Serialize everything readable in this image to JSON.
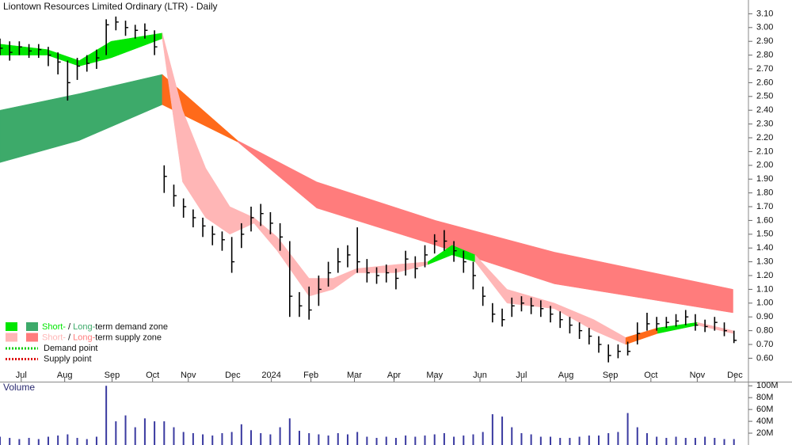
{
  "chart_data": [
    {
      "type": "ohlc",
      "title": "Liontown Resources Limited Ordinary (LTR) - Daily",
      "x": [
        0,
        1,
        2,
        3,
        4,
        5,
        6,
        7,
        8,
        9,
        10,
        11,
        12,
        13,
        14,
        15,
        16,
        17,
        18,
        19,
        20,
        21,
        22,
        23,
        24,
        25,
        26,
        27,
        28,
        29,
        30,
        31,
        32,
        33,
        34,
        35,
        36,
        37,
        38,
        39,
        40,
        41,
        42,
        43,
        44,
        45,
        46,
        47,
        48,
        49,
        50,
        51,
        52,
        53,
        54,
        55,
        56,
        57,
        58,
        59,
        60,
        61,
        62,
        63,
        64,
        65,
        66,
        67,
        68,
        69,
        70,
        71,
        72,
        73,
        74,
        75,
        76
      ],
      "close": [
        2.85,
        2.82,
        2.86,
        2.83,
        2.84,
        2.8,
        2.75,
        2.6,
        2.72,
        2.74,
        2.78,
        3.02,
        3.04,
        3.0,
        2.98,
        2.98,
        2.86,
        1.92,
        1.78,
        1.7,
        1.62,
        1.56,
        1.5,
        1.46,
        1.3,
        1.5,
        1.62,
        1.65,
        1.58,
        1.48,
        1.05,
        0.98,
        0.95,
        1.1,
        1.22,
        1.3,
        1.35,
        1.3,
        1.22,
        1.2,
        1.22,
        1.18,
        1.32,
        1.25,
        1.35,
        1.45,
        1.45,
        1.38,
        1.3,
        1.2,
        1.05,
        0.92,
        0.88,
        0.98,
        1.0,
        0.98,
        0.96,
        0.92,
        0.88,
        0.84,
        0.8,
        0.76,
        0.7,
        0.62,
        0.65,
        0.65,
        0.78,
        0.85,
        0.85,
        0.86,
        0.87,
        0.9,
        0.84,
        0.83,
        0.86,
        0.8,
        0.73
      ],
      "high": [
        2.92,
        2.9,
        2.9,
        2.88,
        2.88,
        2.86,
        2.82,
        2.76,
        2.78,
        2.8,
        2.84,
        3.06,
        3.08,
        3.05,
        3.02,
        3.03,
        2.98,
        2.0,
        1.86,
        1.76,
        1.68,
        1.62,
        1.56,
        1.52,
        1.48,
        1.58,
        1.7,
        1.72,
        1.66,
        1.58,
        1.45,
        1.08,
        1.12,
        1.2,
        1.3,
        1.4,
        1.42,
        1.55,
        1.32,
        1.26,
        1.28,
        1.25,
        1.38,
        1.34,
        1.42,
        1.5,
        1.53,
        1.45,
        1.38,
        1.3,
        1.12,
        1.0,
        0.96,
        1.04,
        1.05,
        1.04,
        1.02,
        0.98,
        0.94,
        0.9,
        0.86,
        0.82,
        0.76,
        0.7,
        0.7,
        0.72,
        0.86,
        0.93,
        0.9,
        0.9,
        0.92,
        0.95,
        0.92,
        0.88,
        0.9,
        0.86,
        0.8
      ],
      "low": [
        2.8,
        2.76,
        2.8,
        2.78,
        2.78,
        2.72,
        2.66,
        2.47,
        2.62,
        2.68,
        2.7,
        2.8,
        2.98,
        2.94,
        2.92,
        2.92,
        2.8,
        1.8,
        1.7,
        1.62,
        1.55,
        1.48,
        1.42,
        1.38,
        1.22,
        1.4,
        1.52,
        1.56,
        1.5,
        1.38,
        0.9,
        0.9,
        0.88,
        0.98,
        1.12,
        1.22,
        1.26,
        1.22,
        1.15,
        1.14,
        1.15,
        1.1,
        1.2,
        1.18,
        1.26,
        1.36,
        1.38,
        1.3,
        1.22,
        1.1,
        0.98,
        0.86,
        0.83,
        0.9,
        0.94,
        0.92,
        0.9,
        0.86,
        0.82,
        0.78,
        0.74,
        0.7,
        0.64,
        0.57,
        0.6,
        0.62,
        0.7,
        0.8,
        0.8,
        0.82,
        0.83,
        0.84,
        0.8,
        0.79,
        0.8,
        0.76,
        0.71
      ],
      "color": "#000000",
      "bands": [
        {
          "color": "#3daa6a",
          "x": [
            0,
            8.2,
            16.8
          ],
          "upper": [
            2.4,
            2.52,
            2.66
          ],
          "lower": [
            2.02,
            2.18,
            2.44
          ]
        },
        {
          "color": "#ff6a1a",
          "x": [
            16.8,
            24.6
          ],
          "upper": [
            2.66,
            2.18
          ],
          "lower": [
            2.44,
            2.17
          ]
        },
        {
          "color": "#ff7c7c",
          "x": [
            24.6,
            32.8,
            45.1,
            57.4,
            75.9
          ],
          "upper": [
            2.18,
            1.88,
            1.6,
            1.37,
            1.1
          ],
          "lower": [
            2.17,
            1.69,
            1.42,
            1.14,
            0.93
          ]
        },
        {
          "color": "#00e600",
          "x": [
            0,
            4.9,
            8.2,
            11.5,
            16.8
          ],
          "upper": [
            2.88,
            2.84,
            2.76,
            2.9,
            2.96
          ],
          "lower": [
            2.8,
            2.8,
            2.72,
            2.78,
            2.92
          ]
        },
        {
          "color": "#ffb6b6",
          "x": [
            16.8,
            18.9,
            21.3,
            23.8,
            26.3,
            28.7,
            32.0,
            34.5,
            36.9,
            41.0,
            44.3
          ],
          "upper": [
            2.96,
            2.4,
            1.98,
            1.7,
            1.62,
            1.48,
            1.18,
            1.18,
            1.25,
            1.28,
            1.3
          ],
          "lower": [
            2.92,
            1.88,
            1.62,
            1.5,
            1.58,
            1.38,
            1.05,
            1.1,
            1.22,
            1.22,
            1.28
          ]
        },
        {
          "color": "#00e600",
          "x": [
            44.3,
            46.8,
            49.2
          ],
          "upper": [
            1.3,
            1.42,
            1.35
          ],
          "lower": [
            1.28,
            1.35,
            1.3
          ]
        },
        {
          "color": "#ffb6b6",
          "x": [
            49.2,
            52.5,
            57.4,
            61.5,
            64.8
          ],
          "upper": [
            1.35,
            1.1,
            1.0,
            0.88,
            0.75
          ],
          "lower": [
            1.3,
            1.0,
            0.96,
            0.8,
            0.7
          ]
        },
        {
          "color": "#ff6a1a",
          "x": [
            64.8,
            68.1
          ],
          "upper": [
            0.75,
            0.82
          ],
          "lower": [
            0.7,
            0.78
          ]
        },
        {
          "color": "#00e600",
          "x": [
            68.1,
            72.2
          ],
          "upper": [
            0.82,
            0.86
          ],
          "lower": [
            0.78,
            0.84
          ]
        },
        {
          "color": "#ffb6b6",
          "x": [
            72.2,
            75.9
          ],
          "upper": [
            0.86,
            0.8
          ],
          "lower": [
            0.84,
            0.78
          ]
        }
      ],
      "legend": [
        {
          "short": "Short-",
          "sep": " / ",
          "long": "Long-",
          "text": "term demand zone",
          "short_color": "#00e600",
          "long_color": "#3daa6a"
        },
        {
          "short": "Short-",
          "sep": " / ",
          "long": "Long-",
          "text": "term supply zone",
          "short_color": "#ffb6b6",
          "long_color": "#ff7c7c"
        },
        {
          "text": "Demand point",
          "color": "#00cc00"
        },
        {
          "text": "Supply point",
          "color": "#dd0000"
        }
      ],
      "xlim": [
        0,
        77.5
      ],
      "xticks": [
        {
          "value": 2.2,
          "label": "Jul"
        },
        {
          "value": 6.7,
          "label": "Aug"
        },
        {
          "value": 11.6,
          "label": "Sep"
        },
        {
          "value": 15.8,
          "label": "Oct"
        },
        {
          "value": 19.5,
          "label": "Nov"
        },
        {
          "value": 24.1,
          "label": "Dec"
        },
        {
          "value": 28.1,
          "label": "2024"
        },
        {
          "value": 32.2,
          "label": "Feb"
        },
        {
          "value": 36.7,
          "label": "Mar"
        },
        {
          "value": 40.8,
          "label": "Apr"
        },
        {
          "value": 45.0,
          "label": "May"
        },
        {
          "value": 49.7,
          "label": "Jun"
        },
        {
          "value": 54.0,
          "label": "Jul"
        },
        {
          "value": 58.6,
          "label": "Aug"
        },
        {
          "value": 63.2,
          "label": "Sep"
        },
        {
          "value": 67.4,
          "label": "Oct"
        },
        {
          "value": 72.2,
          "label": "Nov"
        },
        {
          "value": 76.1,
          "label": "Dec"
        }
      ],
      "ylim": [
        0.43,
        3.2
      ],
      "yticks": [
        {
          "value": 3.1,
          "label": "3.10"
        },
        {
          "value": 3.0,
          "label": "3.00"
        },
        {
          "value": 2.9,
          "label": "2.90"
        },
        {
          "value": 2.8,
          "label": "2.80"
        },
        {
          "value": 2.7,
          "label": "2.70"
        },
        {
          "value": 2.6,
          "label": "2.60"
        },
        {
          "value": 2.5,
          "label": "2.50"
        },
        {
          "value": 2.4,
          "label": "2.40"
        },
        {
          "value": 2.3,
          "label": "2.30"
        },
        {
          "value": 2.2,
          "label": "2.20"
        },
        {
          "value": 2.1,
          "label": "2.10"
        },
        {
          "value": 2.0,
          "label": "2.00"
        },
        {
          "value": 1.9,
          "label": "1.90"
        },
        {
          "value": 1.8,
          "label": "1.80"
        },
        {
          "value": 1.7,
          "label": "1.70"
        },
        {
          "value": 1.6,
          "label": "1.60"
        },
        {
          "value": 1.5,
          "label": "1.50"
        },
        {
          "value": 1.4,
          "label": "1.40"
        },
        {
          "value": 1.3,
          "label": "1.30"
        },
        {
          "value": 1.2,
          "label": "1.20"
        },
        {
          "value": 1.1,
          "label": "1.10"
        },
        {
          "value": 1.0,
          "label": "1.00"
        },
        {
          "value": 0.9,
          "label": "0.90"
        },
        {
          "value": 0.8,
          "label": "0.80"
        },
        {
          "value": 0.7,
          "label": "0.70"
        },
        {
          "value": 0.6,
          "label": "0.60"
        }
      ]
    },
    {
      "type": "bar",
      "title": "Volume",
      "x": [
        0,
        1,
        2,
        3,
        4,
        5,
        6,
        7,
        8,
        9,
        10,
        11,
        12,
        13,
        14,
        15,
        16,
        17,
        18,
        19,
        20,
        21,
        22,
        23,
        24,
        25,
        26,
        27,
        28,
        29,
        30,
        31,
        32,
        33,
        34,
        35,
        36,
        37,
        38,
        39,
        40,
        41,
        42,
        43,
        44,
        45,
        46,
        47,
        48,
        49,
        50,
        51,
        52,
        53,
        54,
        55,
        56,
        57,
        58,
        59,
        60,
        61,
        62,
        63,
        64,
        65,
        66,
        67,
        68,
        69,
        70,
        71,
        72,
        73,
        74,
        75,
        76
      ],
      "values": [
        14,
        12,
        10,
        12,
        10,
        14,
        16,
        18,
        12,
        10,
        14,
        100,
        40,
        50,
        30,
        45,
        40,
        40,
        30,
        22,
        20,
        18,
        16,
        20,
        22,
        35,
        25,
        20,
        18,
        30,
        45,
        24,
        20,
        18,
        16,
        20,
        18,
        22,
        14,
        12,
        14,
        12,
        16,
        14,
        16,
        18,
        20,
        14,
        16,
        18,
        22,
        52,
        48,
        30,
        20,
        18,
        14,
        14,
        12,
        12,
        14,
        16,
        16,
        20,
        22,
        54,
        30,
        20,
        14,
        12,
        14,
        12,
        12,
        14,
        12,
        10,
        10
      ],
      "color": "#3a3aa0",
      "xlim": [
        0,
        77.5
      ],
      "ylim": [
        0,
        107
      ],
      "yticks": [
        {
          "value": 100,
          "label": "100M"
        },
        {
          "value": 80,
          "label": "80M"
        },
        {
          "value": 60,
          "label": "60M"
        },
        {
          "value": 40,
          "label": "40M"
        },
        {
          "value": 20,
          "label": "20M"
        }
      ]
    }
  ]
}
